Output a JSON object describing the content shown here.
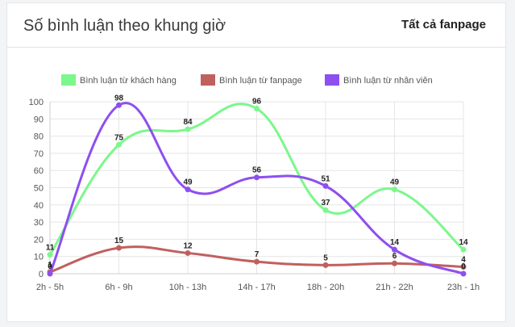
{
  "header": {
    "title": "Số bình luận theo khung giờ",
    "filter_label": "Tất cả fanpage"
  },
  "chart_data": {
    "type": "line",
    "categories": [
      "2h - 5h",
      "6h - 9h",
      "10h - 13h",
      "14h - 17h",
      "18h - 20h",
      "21h - 22h",
      "23h - 1h"
    ],
    "y_ticks": [
      0,
      10,
      20,
      30,
      40,
      50,
      60,
      70,
      80,
      90,
      100
    ],
    "ylim": [
      0,
      100
    ],
    "grid": true,
    "legend_position": "top",
    "series": [
      {
        "name": "Bình luận từ khách hàng",
        "color": "#7cf78c",
        "values": [
          11,
          75,
          84,
          96,
          37,
          49,
          14
        ]
      },
      {
        "name": "Bình luận từ fanpage",
        "color": "#c0605e",
        "values": [
          1,
          15,
          12,
          7,
          5,
          6,
          4
        ]
      },
      {
        "name": "Bình luận từ nhân viên",
        "color": "#8e4ff0",
        "values": [
          0,
          98,
          49,
          56,
          51,
          14,
          0
        ]
      }
    ]
  }
}
